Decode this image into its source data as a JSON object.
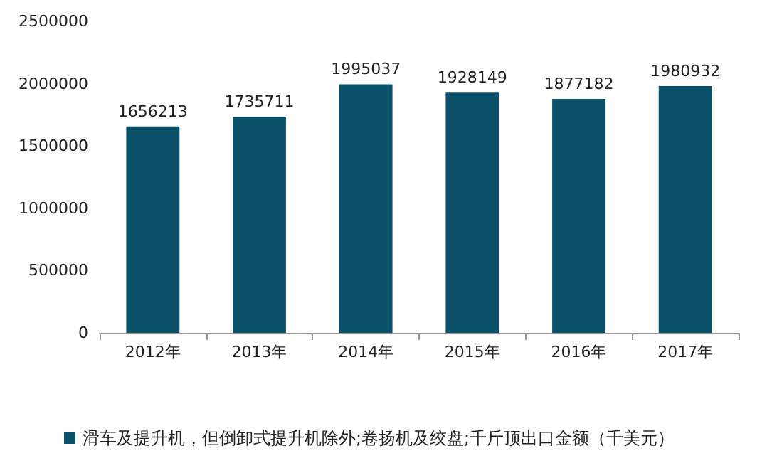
{
  "chart_data": {
    "type": "bar",
    "categories": [
      "2012年",
      "2013年",
      "2014年",
      "2015年",
      "2016年",
      "2017年"
    ],
    "series": [
      {
        "name": "滑车及提升机，但倒卸式提升机除外;卷扬机及绞盘;千斤顶出口金额（千美元）",
        "color": "#0b5069",
        "values": [
          1656213,
          1735711,
          1995037,
          1928149,
          1877182,
          1980932
        ]
      }
    ],
    "ylim": [
      0,
      2500000
    ],
    "yticks": [
      0,
      500000,
      1000000,
      1500000,
      2000000,
      2500000
    ],
    "data_labels": true,
    "grid": false,
    "legend": "bottom"
  }
}
